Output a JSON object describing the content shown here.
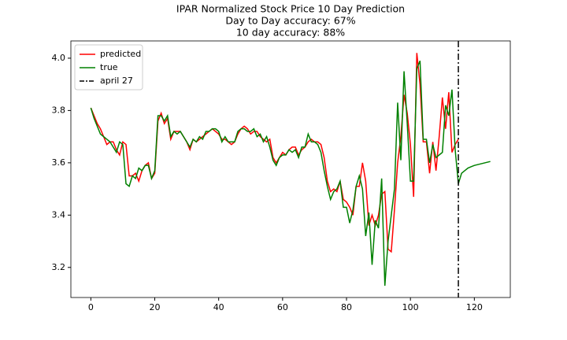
{
  "chart_data": {
    "type": "line",
    "title": "IPAR Normalized Stock Price 10 Day Prediction",
    "subtitle": [
      "Day to Day accuracy: 67%",
      "10 day accuracy: 88%"
    ],
    "x": [
      0,
      1,
      2,
      3,
      4,
      5,
      6,
      7,
      8,
      9,
      10,
      11,
      12,
      13,
      14,
      15,
      16,
      17,
      18,
      19,
      20,
      21,
      22,
      23,
      24,
      25,
      26,
      27,
      28,
      29,
      30,
      31,
      32,
      33,
      34,
      35,
      36,
      37,
      38,
      39,
      40,
      41,
      42,
      43,
      44,
      45,
      46,
      47,
      48,
      49,
      50,
      51,
      52,
      53,
      54,
      55,
      56,
      57,
      58,
      59,
      60,
      61,
      62,
      63,
      64,
      65,
      66,
      67,
      68,
      69,
      70,
      71,
      72,
      73,
      74,
      75,
      76,
      77,
      78,
      79,
      80,
      81,
      82,
      83,
      84,
      85,
      86,
      87,
      88,
      89,
      90,
      91,
      92,
      93,
      94,
      95,
      96,
      97,
      98,
      99,
      100,
      101,
      102,
      103,
      104,
      105,
      106,
      107,
      108,
      109,
      110,
      111,
      112,
      113,
      114,
      115,
      116,
      117,
      118,
      119,
      120,
      121,
      122,
      123,
      124,
      125
    ],
    "series": [
      {
        "name": "predicted",
        "color": "#ff0000",
        "values": [
          3.81,
          3.78,
          3.75,
          3.73,
          3.7,
          3.67,
          3.68,
          3.68,
          3.65,
          3.63,
          3.68,
          3.67,
          3.55,
          3.55,
          3.56,
          3.53,
          3.57,
          3.59,
          3.6,
          3.54,
          3.56,
          3.76,
          3.79,
          3.75,
          3.77,
          3.69,
          3.72,
          3.72,
          3.72,
          3.7,
          3.68,
          3.65,
          3.69,
          3.68,
          3.69,
          3.7,
          3.71,
          3.72,
          3.73,
          3.72,
          3.71,
          3.69,
          3.69,
          3.68,
          3.67,
          3.68,
          3.71,
          3.73,
          3.74,
          3.73,
          3.71,
          3.72,
          3.72,
          3.7,
          3.69,
          3.68,
          3.69,
          3.62,
          3.6,
          3.62,
          3.64,
          3.63,
          3.65,
          3.66,
          3.66,
          3.63,
          3.65,
          3.66,
          3.68,
          3.69,
          3.68,
          3.68,
          3.67,
          3.62,
          3.53,
          3.49,
          3.5,
          3.49,
          3.53,
          3.46,
          3.45,
          3.43,
          3.4,
          3.51,
          3.51,
          3.6,
          3.53,
          3.36,
          3.4,
          3.36,
          3.4,
          3.48,
          3.49,
          3.27,
          3.26,
          3.42,
          3.6,
          3.7,
          3.86,
          3.79,
          3.67,
          3.47,
          4.02,
          3.9,
          3.68,
          3.68,
          3.56,
          3.68,
          3.57,
          3.7,
          3.85,
          3.73,
          3.87,
          3.64,
          3.67,
          3.69,
          null,
          null,
          null,
          null,
          null,
          null,
          null,
          null,
          null,
          null
        ]
      },
      {
        "name": "true",
        "color": "#008000",
        "values": [
          3.81,
          3.77,
          3.74,
          3.71,
          3.7,
          3.69,
          3.68,
          3.66,
          3.64,
          3.68,
          3.67,
          3.52,
          3.51,
          3.55,
          3.54,
          3.58,
          3.57,
          3.59,
          3.59,
          3.54,
          3.57,
          3.78,
          3.78,
          3.76,
          3.78,
          3.7,
          3.72,
          3.71,
          3.72,
          3.7,
          3.68,
          3.66,
          3.69,
          3.68,
          3.7,
          3.69,
          3.72,
          3.72,
          3.73,
          3.73,
          3.72,
          3.68,
          3.7,
          3.68,
          3.68,
          3.68,
          3.72,
          3.73,
          3.73,
          3.72,
          3.72,
          3.73,
          3.7,
          3.71,
          3.68,
          3.7,
          3.66,
          3.61,
          3.59,
          3.62,
          3.63,
          3.63,
          3.65,
          3.64,
          3.65,
          3.62,
          3.66,
          3.66,
          3.71,
          3.68,
          3.68,
          3.67,
          3.64,
          3.57,
          3.51,
          3.46,
          3.49,
          3.5,
          3.53,
          3.43,
          3.43,
          3.37,
          3.42,
          3.51,
          3.55,
          3.5,
          3.32,
          3.41,
          3.21,
          3.38,
          3.35,
          3.54,
          3.13,
          3.3,
          3.4,
          3.5,
          3.83,
          3.61,
          3.95,
          3.75,
          3.53,
          3.53,
          3.96,
          3.99,
          3.69,
          3.69,
          3.6,
          3.67,
          3.62,
          3.63,
          3.64,
          3.82,
          3.78,
          3.88,
          3.65,
          3.52,
          3.56,
          3.57,
          3.58,
          3.585,
          3.59,
          3.593,
          3.596,
          3.599,
          3.602,
          3.605
        ]
      }
    ],
    "vlines": [
      {
        "name": "april 27",
        "x": 115,
        "color": "#000000"
      }
    ],
    "xlim": [
      -6.25,
      131.25
    ],
    "ylim": [
      3.085,
      4.066
    ],
    "xticks": [
      0,
      20,
      40,
      60,
      80,
      100,
      120
    ],
    "yticks": [
      3.2,
      3.4,
      3.6,
      3.8,
      {
        "value": 4,
        "label": "4.0"
      }
    ],
    "legend": "upper left"
  }
}
